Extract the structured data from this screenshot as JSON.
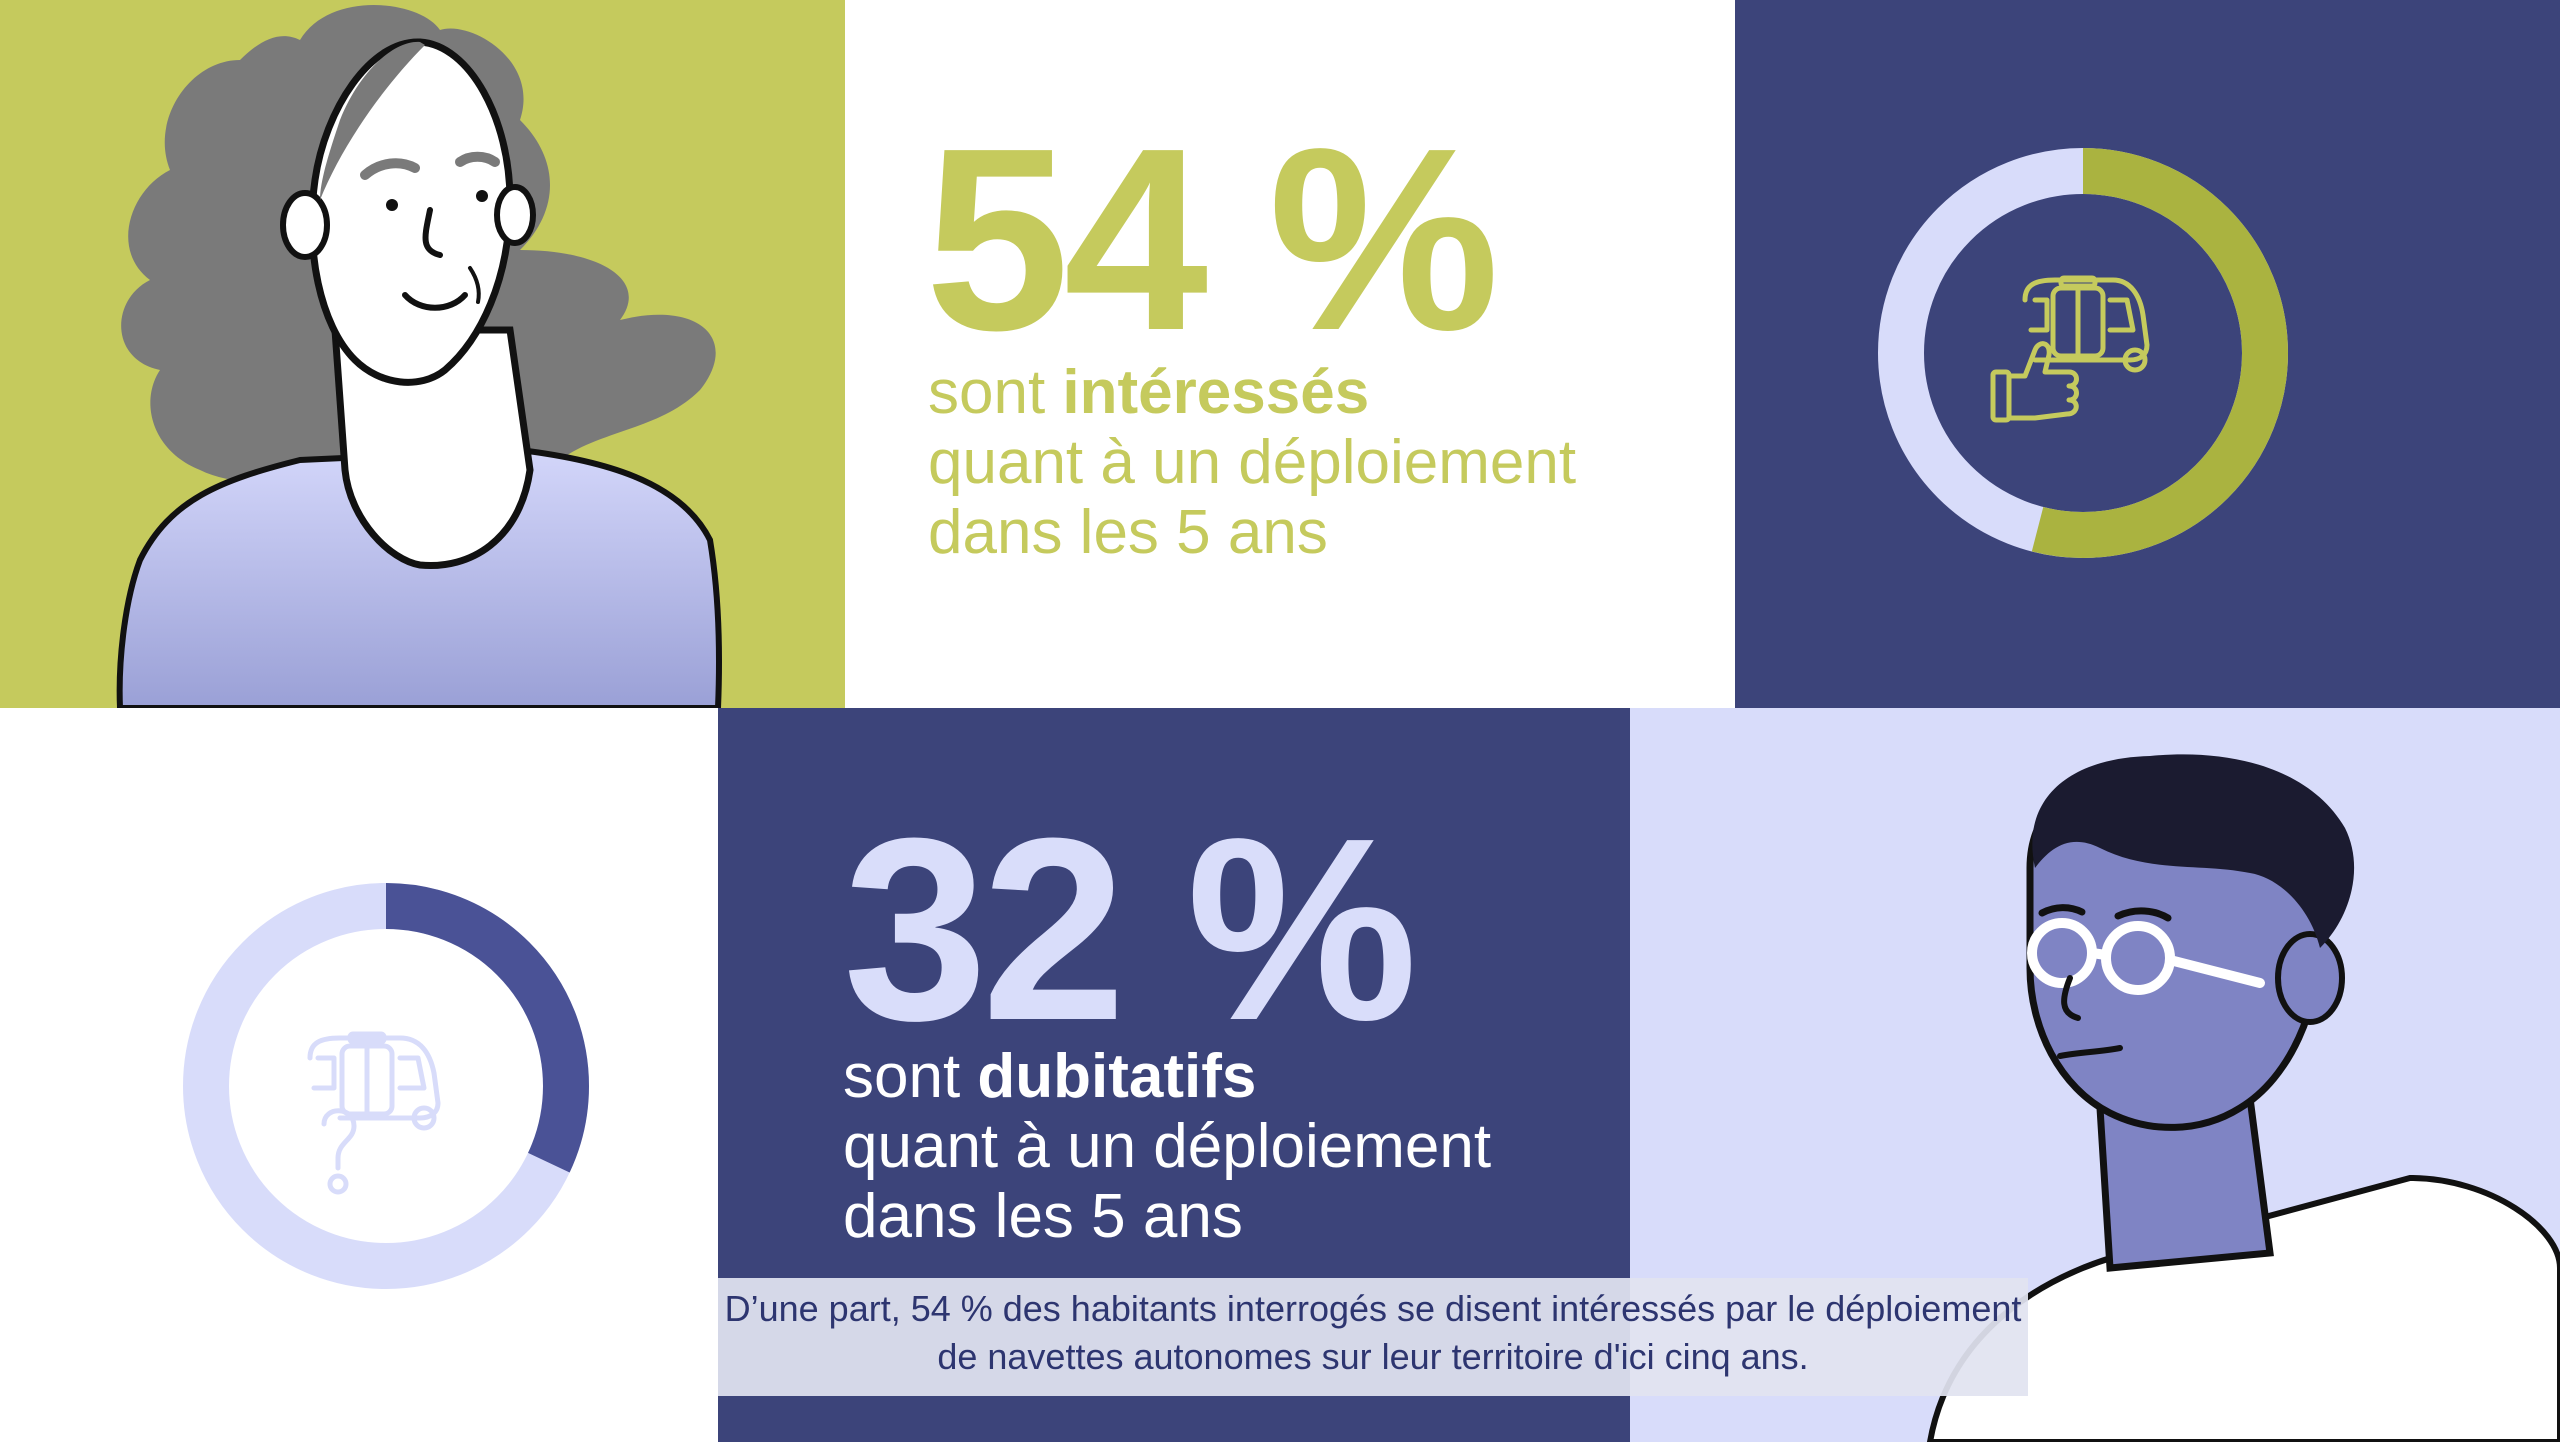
{
  "stat_interested": {
    "percent_text": "54 %",
    "value": 54,
    "line1_prefix": "sont ",
    "line1_bold": "intéressés",
    "line2": "quant à un déploiement",
    "line3": "dans les 5 ans"
  },
  "stat_doubtful": {
    "percent_text": "32 %",
    "value": 32,
    "line1_prefix": "sont ",
    "line1_bold": "dubitatifs",
    "line2": "quant à un déploiement",
    "line3": "dans les 5 ans"
  },
  "subtitle": {
    "line1": "D’une part, 54 % des habitants interrogés se disent intéressés par le déploiement",
    "line2": "de navettes autonomes sur leur territoire d'ici cinq ans."
  },
  "icons": {
    "donut1_icon": "shuttle-thumbs-up-icon",
    "donut2_icon": "shuttle-question-icon"
  },
  "colors": {
    "lime": "#c5ca5d",
    "navy": "#3c447a",
    "lavender": "#d8dcfa",
    "dark_donut": "#525aa0"
  }
}
